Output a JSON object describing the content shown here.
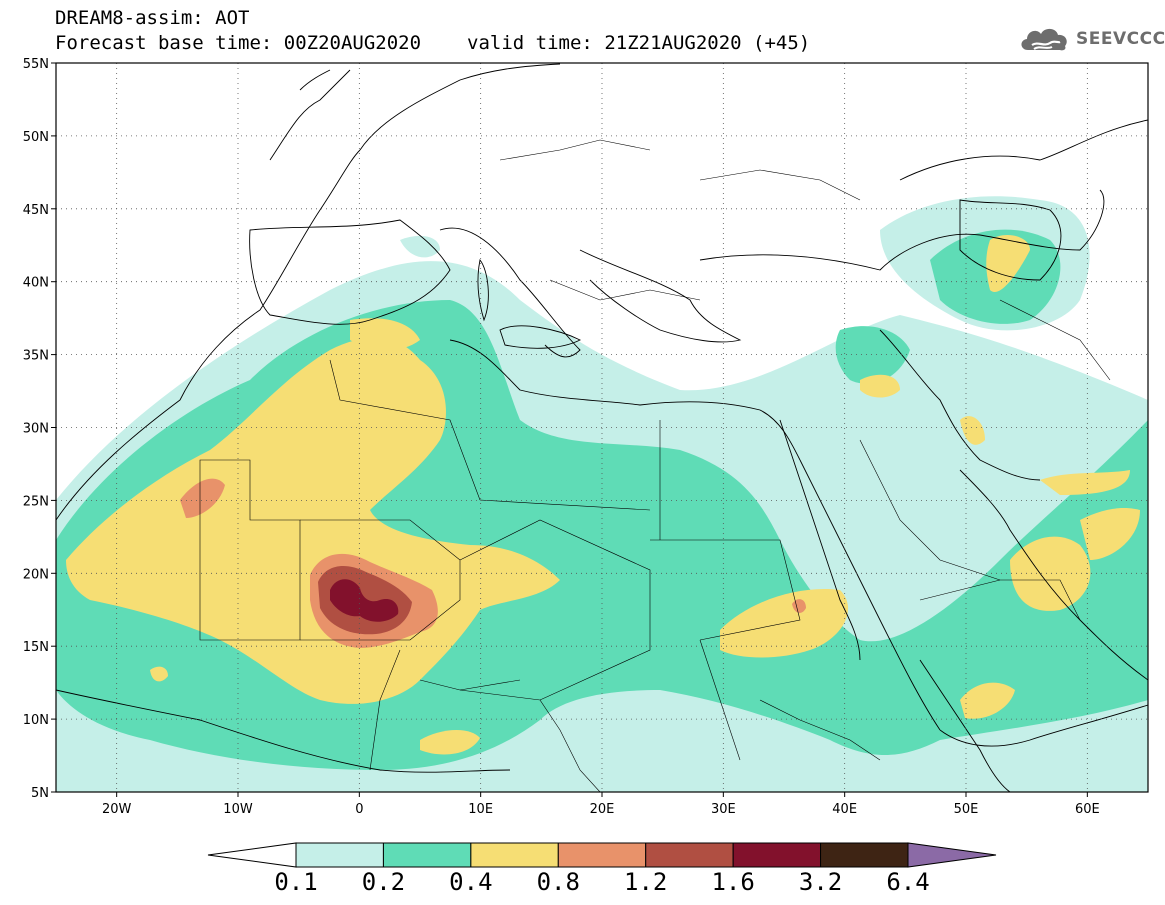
{
  "title": {
    "line1": "DREAM8-assim: AOT",
    "base_time": "Forecast base time: 00Z20AUG2020",
    "valid_time": "valid time: 21Z21AUG2020 (+45)"
  },
  "logo": {
    "text": "SEEVCCC",
    "icon": "cloud-icon"
  },
  "map": {
    "lon_range": [
      -25,
      65
    ],
    "lat_range": [
      5,
      55
    ],
    "grid": "dotted",
    "lat_ticks": [
      {
        "value": 5,
        "label": "5N"
      },
      {
        "value": 10,
        "label": "10N"
      },
      {
        "value": 15,
        "label": "15N"
      },
      {
        "value": 20,
        "label": "20N"
      },
      {
        "value": 25,
        "label": "25N"
      },
      {
        "value": 30,
        "label": "30N"
      },
      {
        "value": 35,
        "label": "35N"
      },
      {
        "value": 40,
        "label": "40N"
      },
      {
        "value": 45,
        "label": "45N"
      },
      {
        "value": 50,
        "label": "50N"
      },
      {
        "value": 55,
        "label": "55N"
      }
    ],
    "lon_ticks": [
      {
        "value": -20,
        "label": "20W"
      },
      {
        "value": -10,
        "label": "10W"
      },
      {
        "value": 0,
        "label": "0"
      },
      {
        "value": 10,
        "label": "10E"
      },
      {
        "value": 20,
        "label": "20E"
      },
      {
        "value": 30,
        "label": "30E"
      },
      {
        "value": 40,
        "label": "40E"
      },
      {
        "value": 50,
        "label": "50E"
      },
      {
        "value": 60,
        "label": "60E"
      }
    ]
  },
  "colorbar": {
    "under_color": "#ffffff",
    "over_color": "#8b6aa6",
    "bins": [
      {
        "from": "0.1",
        "to": "0.2",
        "color": "#c5efe8"
      },
      {
        "from": "0.2",
        "to": "0.4",
        "color": "#5fdcb6"
      },
      {
        "from": "0.4",
        "to": "0.8",
        "color": "#f6de74"
      },
      {
        "from": "0.8",
        "to": "1.2",
        "color": "#e8926a"
      },
      {
        "from": "1.2",
        "to": "1.6",
        "color": "#b04f42"
      },
      {
        "from": "1.6",
        "to": "3.2",
        "color": "#82112c"
      },
      {
        "from": "3.2",
        "to": "6.4",
        "color": "#3e2414"
      }
    ],
    "labels": [
      "0.1",
      "0.2",
      "0.4",
      "0.8",
      "1.2",
      "1.6",
      "3.2",
      "6.4"
    ]
  }
}
